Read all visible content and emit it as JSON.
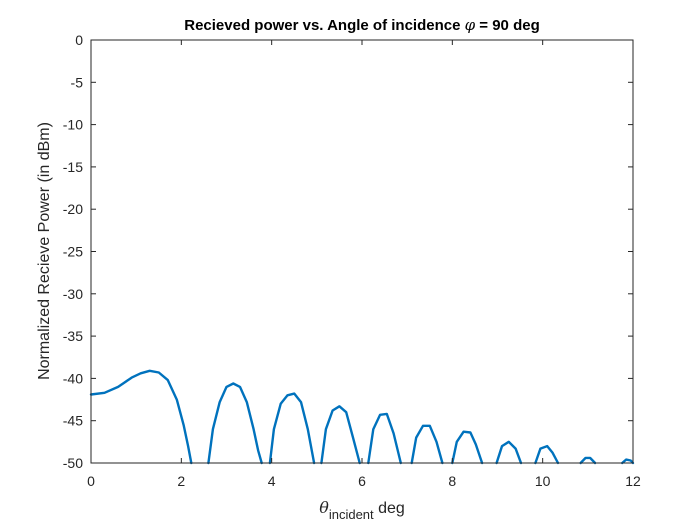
{
  "chart_data": {
    "type": "line",
    "title_main": "Recieved power vs. Angle of incidence ",
    "title_symbol": "φ",
    "title_tail": " = 90 deg",
    "xlabel_symbol": "θ",
    "xlabel_subscript": "incident",
    "xlabel_unit": " deg",
    "ylabel": "Normalized Recieve Power (in dBm)",
    "xlim": [
      0,
      12
    ],
    "ylim": [
      -50,
      0
    ],
    "xticks": [
      "0",
      "2",
      "4",
      "6",
      "8",
      "10",
      "12"
    ],
    "yticks": [
      "0",
      "-5",
      "-10",
      "-15",
      "-20",
      "-25",
      "-30",
      "-35",
      "-40",
      "-45",
      "-50"
    ],
    "grid": false,
    "line_color": "#0072BD",
    "series": [
      {
        "x": [
          0,
          0.3,
          0.6,
          0.9,
          1.1,
          1.3,
          1.5,
          1.7,
          1.9,
          2.05,
          2.15,
          2.22
        ],
        "y": [
          -41.9,
          -41.7,
          -41.0,
          -39.9,
          -39.4,
          -39.1,
          -39.3,
          -40.2,
          -42.5,
          -45.5,
          -48.0,
          -50.0
        ]
      },
      {
        "x": [
          2.6,
          2.7,
          2.85,
          3.0,
          3.15,
          3.3,
          3.45,
          3.6,
          3.7,
          3.78
        ],
        "y": [
          -50.0,
          -46.0,
          -42.8,
          -41.0,
          -40.6,
          -41.0,
          -42.8,
          -46.0,
          -48.5,
          -50.0
        ]
      },
      {
        "x": [
          3.96,
          4.05,
          4.2,
          4.35,
          4.5,
          4.65,
          4.8,
          4.94
        ],
        "y": [
          -50.0,
          -46.0,
          -43.0,
          -42.0,
          -41.8,
          -42.8,
          -46.0,
          -50.0
        ]
      },
      {
        "x": [
          5.1,
          5.2,
          5.35,
          5.5,
          5.65,
          5.8,
          5.95
        ],
        "y": [
          -50.0,
          -46.0,
          -43.8,
          -43.3,
          -44.0,
          -47.0,
          -50.0
        ]
      },
      {
        "x": [
          6.14,
          6.25,
          6.4,
          6.55,
          6.7,
          6.86
        ],
        "y": [
          -50.0,
          -46.0,
          -44.3,
          -44.2,
          -46.5,
          -50.0
        ]
      },
      {
        "x": [
          7.1,
          7.2,
          7.35,
          7.5,
          7.65,
          7.78
        ],
        "y": [
          -50.0,
          -47.0,
          -45.6,
          -45.6,
          -47.5,
          -50.0
        ]
      },
      {
        "x": [
          8.0,
          8.1,
          8.25,
          8.4,
          8.52,
          8.66
        ],
        "y": [
          -50.0,
          -47.5,
          -46.3,
          -46.4,
          -47.8,
          -50.0
        ]
      },
      {
        "x": [
          8.98,
          9.1,
          9.25,
          9.4,
          9.52
        ],
        "y": [
          -50.0,
          -48.0,
          -47.5,
          -48.3,
          -50.0
        ]
      },
      {
        "x": [
          9.84,
          9.95,
          10.1,
          10.22,
          10.34
        ],
        "y": [
          -50.0,
          -48.3,
          -48.0,
          -48.8,
          -50.0
        ]
      },
      {
        "x": [
          10.84,
          10.95,
          11.05,
          11.16
        ],
        "y": [
          -50.0,
          -49.4,
          -49.4,
          -50.0
        ]
      },
      {
        "x": [
          11.76,
          11.85,
          11.95,
          12.0
        ],
        "y": [
          -50.0,
          -49.6,
          -49.7,
          -50.0
        ]
      }
    ]
  }
}
